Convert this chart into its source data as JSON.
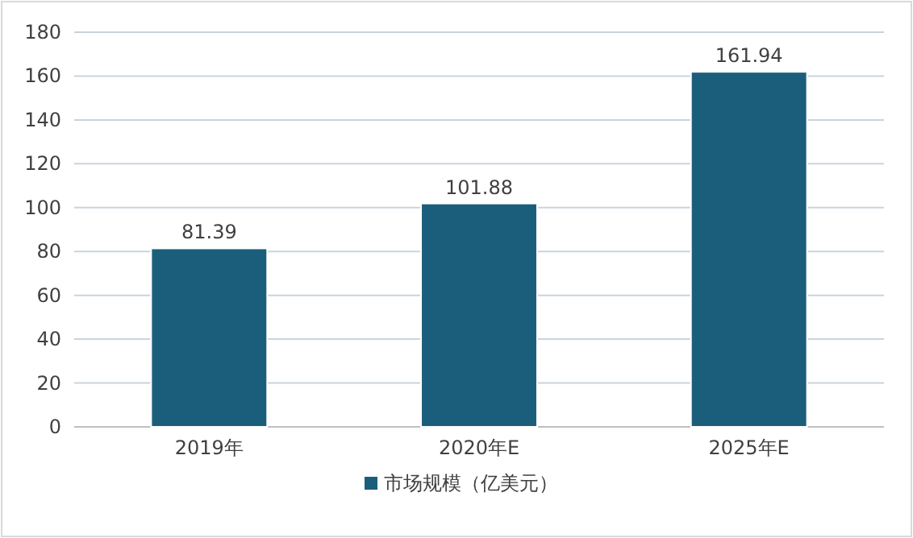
{
  "chart_data": {
    "type": "bar",
    "categories": [
      "2019年",
      "2020年E",
      "2025年E"
    ],
    "series": [
      {
        "name": "市场规模（亿美元）",
        "color": "#1b5e7b",
        "values": [
          81.39,
          101.88,
          161.94
        ]
      }
    ],
    "ylim": [
      0,
      180
    ],
    "yticks": [
      0,
      20,
      40,
      60,
      80,
      100,
      120,
      140,
      160,
      180
    ],
    "grid": "y",
    "legend": "bottom",
    "data_labels": true
  }
}
